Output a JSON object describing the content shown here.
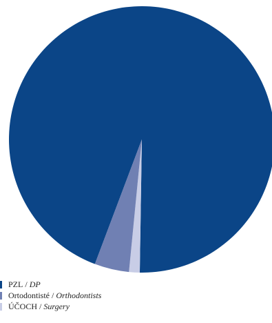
{
  "chart_data": {
    "type": "pie",
    "title": "",
    "slices": [
      {
        "label": "PZL",
        "label_en": "DP",
        "value": 94.5,
        "color": "#0b4587"
      },
      {
        "label": "Ortodontisté",
        "label_en": "Orthodontists",
        "value": 4.2,
        "color": "#7080b3"
      },
      {
        "label": "ÚČOCH",
        "label_en": "Surgery",
        "value": 1.3,
        "color": "#c8cde6"
      }
    ],
    "start": "bottom-right, clockwise",
    "legend_position": "bottom-left",
    "separator": " / "
  }
}
